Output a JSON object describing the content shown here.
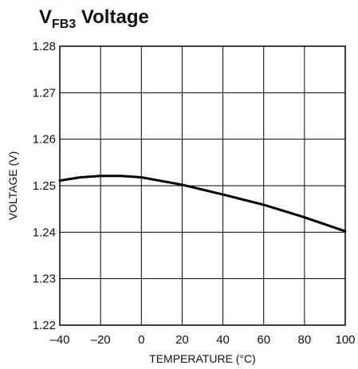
{
  "chart_data": {
    "type": "line",
    "title": {
      "main": "V",
      "subscript": "FB3",
      "rest": " Voltage"
    },
    "xlabel": "TEMPERATURE (°C)",
    "ylabel": "VOLTAGE (V)",
    "xlim": [
      -40,
      100
    ],
    "ylim": [
      1.22,
      1.28
    ],
    "xticks": [
      -40,
      -20,
      0,
      20,
      40,
      60,
      80,
      100
    ],
    "xtick_labels": [
      "–40",
      "–20",
      "0",
      "20",
      "40",
      "60",
      "80",
      "100"
    ],
    "yticks": [
      1.22,
      1.23,
      1.24,
      1.25,
      1.26,
      1.27,
      1.28
    ],
    "ytick_labels": [
      "1.22",
      "1.23",
      "1.24",
      "1.25",
      "1.26",
      "1.27",
      "1.28"
    ],
    "grid": true,
    "series": [
      {
        "x": [
          -40,
          -30,
          -20,
          -10,
          0,
          20,
          40,
          60,
          80,
          100
        ],
        "y": [
          1.2511,
          1.2518,
          1.2521,
          1.2521,
          1.2518,
          1.2502,
          1.2481,
          1.2459,
          1.2432,
          1.2402
        ]
      }
    ],
    "line_color": "#000000"
  }
}
